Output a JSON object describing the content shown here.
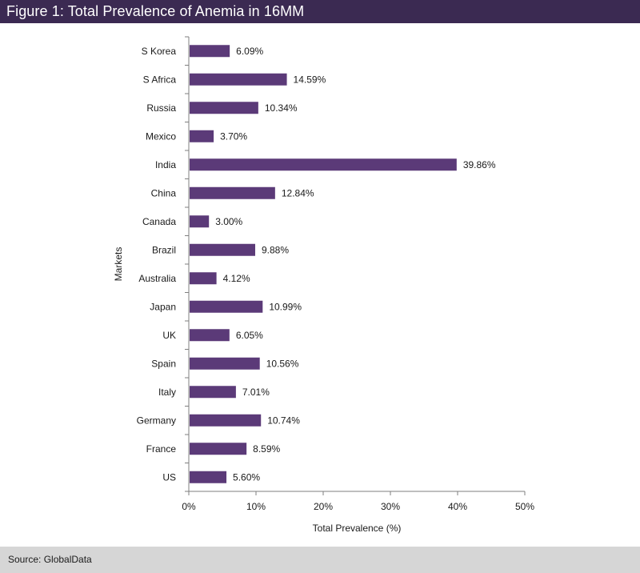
{
  "header": {
    "title": "Figure 1: Total Prevalence of Anemia in 16MM"
  },
  "footer": {
    "source": "Source: GlobalData"
  },
  "colors": {
    "bar": "#5b3a78",
    "title_bg": "#3b2a52",
    "source_bg": "#d6d6d6"
  },
  "chart_data": {
    "type": "bar",
    "orientation": "horizontal",
    "title": "Figure 1: Total Prevalence of Anemia in 16MM",
    "xlabel": "Total Prevalence (%)",
    "ylabel": "Markets",
    "xlim": [
      0,
      50
    ],
    "x_ticks": [
      0,
      10,
      20,
      30,
      40,
      50
    ],
    "x_tick_labels": [
      "0%",
      "10%",
      "20%",
      "30%",
      "40%",
      "50%"
    ],
    "grid": false,
    "categories": [
      "S Korea",
      "S Africa",
      "Russia",
      "Mexico",
      "India",
      "China",
      "Canada",
      "Brazil",
      "Australia",
      "Japan",
      "UK",
      "Spain",
      "Italy",
      "Germany",
      "France",
      "US"
    ],
    "values": [
      6.09,
      14.59,
      10.34,
      3.7,
      39.86,
      12.84,
      3.0,
      9.88,
      4.12,
      10.99,
      6.05,
      10.56,
      7.01,
      10.74,
      8.59,
      5.6
    ],
    "value_labels": [
      "6.09%",
      "14.59%",
      "10.34%",
      "3.70%",
      "39.86%",
      "12.84%",
      "3.00%",
      "9.88%",
      "4.12%",
      "10.99%",
      "6.05%",
      "10.56%",
      "7.01%",
      "10.74%",
      "8.59%",
      "5.60%"
    ]
  }
}
